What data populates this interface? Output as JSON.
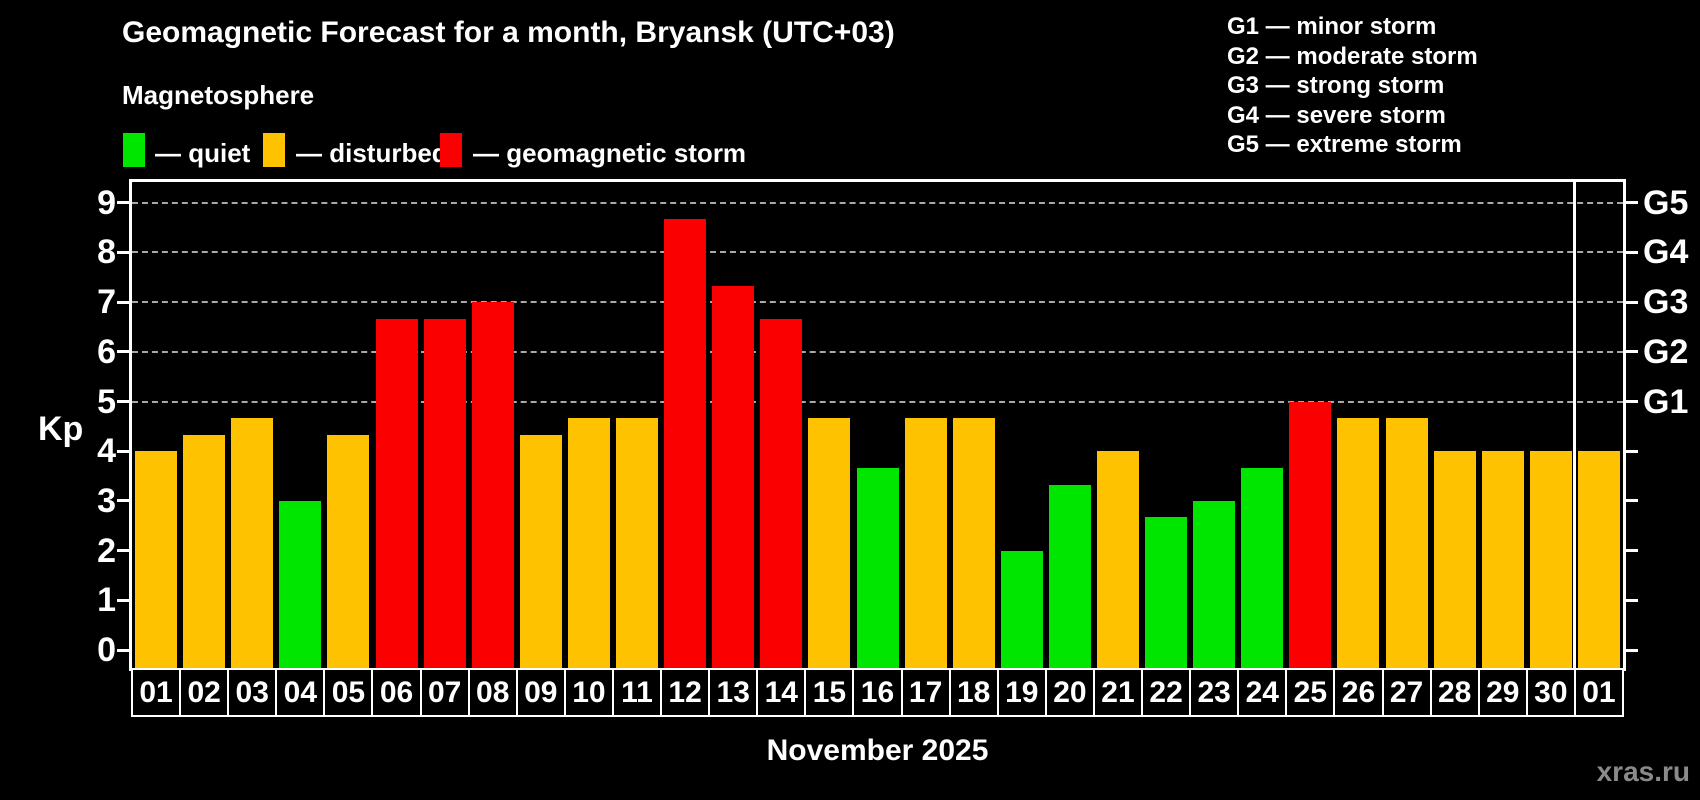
{
  "title": "Geomagnetic Forecast for a month, Bryansk (UTC+03)",
  "subtitle": "Magnetosphere",
  "legend": {
    "quiet_label": "— quiet",
    "disturbed_label": "— disturbed",
    "storm_label": "— geomagnetic storm"
  },
  "g_legend": [
    "G1 — minor storm",
    "G2 — moderate storm",
    "G3 — strong storm",
    "G4 — severe storm",
    "G5 — extreme storm"
  ],
  "colors": {
    "quiet": "#00e600",
    "disturbed": "#ffc200",
    "storm": "#fb0000",
    "axis": "#ffffff",
    "grid": "#a9a9a9",
    "background": "#000000",
    "watermark": "#8a8a8a"
  },
  "watermark": "xras.ru",
  "chart_data": {
    "type": "bar",
    "title": "Geomagnetic Forecast for a month, Bryansk (UTC+03)",
    "xlabel": "November 2025",
    "ylabel": "Kp",
    "ylim": [
      0,
      9
    ],
    "yticks": [
      0,
      1,
      2,
      3,
      4,
      5,
      6,
      7,
      8,
      9
    ],
    "grid": "dashed horizontal at Kp 5-9 only",
    "legend_position": "top",
    "right_axis": {
      "5": "G1",
      "6": "G2",
      "7": "G3",
      "8": "G4",
      "9": "G5"
    },
    "categories": [
      "01",
      "02",
      "03",
      "04",
      "05",
      "06",
      "07",
      "08",
      "09",
      "10",
      "11",
      "12",
      "13",
      "14",
      "15",
      "16",
      "17",
      "18",
      "19",
      "20",
      "21",
      "22",
      "23",
      "24",
      "25",
      "26",
      "27",
      "28",
      "29",
      "30",
      "01"
    ],
    "values": [
      4,
      4.33,
      4.67,
      3,
      4.33,
      6.67,
      6.67,
      7,
      4.33,
      4.67,
      4.67,
      8.67,
      7.33,
      6.67,
      4.67,
      3.67,
      4.67,
      4.67,
      2,
      3.33,
      4,
      2.67,
      3,
      3.67,
      5,
      4.67,
      4.67,
      4,
      4,
      4,
      4
    ],
    "statuses": [
      "disturbed",
      "disturbed",
      "disturbed",
      "quiet",
      "disturbed",
      "storm",
      "storm",
      "storm",
      "disturbed",
      "disturbed",
      "disturbed",
      "storm",
      "storm",
      "storm",
      "disturbed",
      "quiet",
      "disturbed",
      "disturbed",
      "quiet",
      "quiet",
      "disturbed",
      "quiet",
      "quiet",
      "quiet",
      "storm",
      "disturbed",
      "disturbed",
      "disturbed",
      "disturbed",
      "disturbed",
      "disturbed"
    ],
    "separator_after_index": 29,
    "xlabel_note": "last column 01 is the first day of next month"
  }
}
